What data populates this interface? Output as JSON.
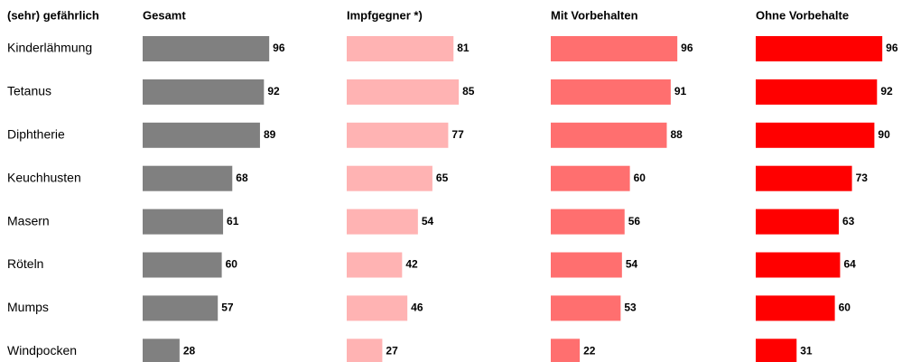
{
  "chart_data": {
    "type": "bar",
    "orientation": "horizontal",
    "category_header": "(sehr) gefährlich",
    "categories": [
      "Kinderlähmung",
      "Tetanus",
      "Diphtherie",
      "Keuchhusten",
      "Masern",
      "Röteln",
      "Mumps",
      "Windpocken"
    ],
    "xlim": [
      0,
      100
    ],
    "series": [
      {
        "name": "Gesamt",
        "color": "#808080",
        "values": [
          96,
          92,
          89,
          68,
          61,
          60,
          57,
          28
        ]
      },
      {
        "name": "Impfgegner *)",
        "color": "#ffb3b3",
        "values": [
          81,
          85,
          77,
          65,
          54,
          42,
          46,
          27
        ]
      },
      {
        "name": "Mit Vorbehalten",
        "color": "#ff6f6f",
        "values": [
          96,
          91,
          88,
          60,
          56,
          54,
          53,
          22
        ]
      },
      {
        "name": "Ohne Vorbehalte",
        "color": "#ff0000",
        "values": [
          96,
          92,
          90,
          73,
          63,
          64,
          60,
          31
        ]
      }
    ]
  }
}
